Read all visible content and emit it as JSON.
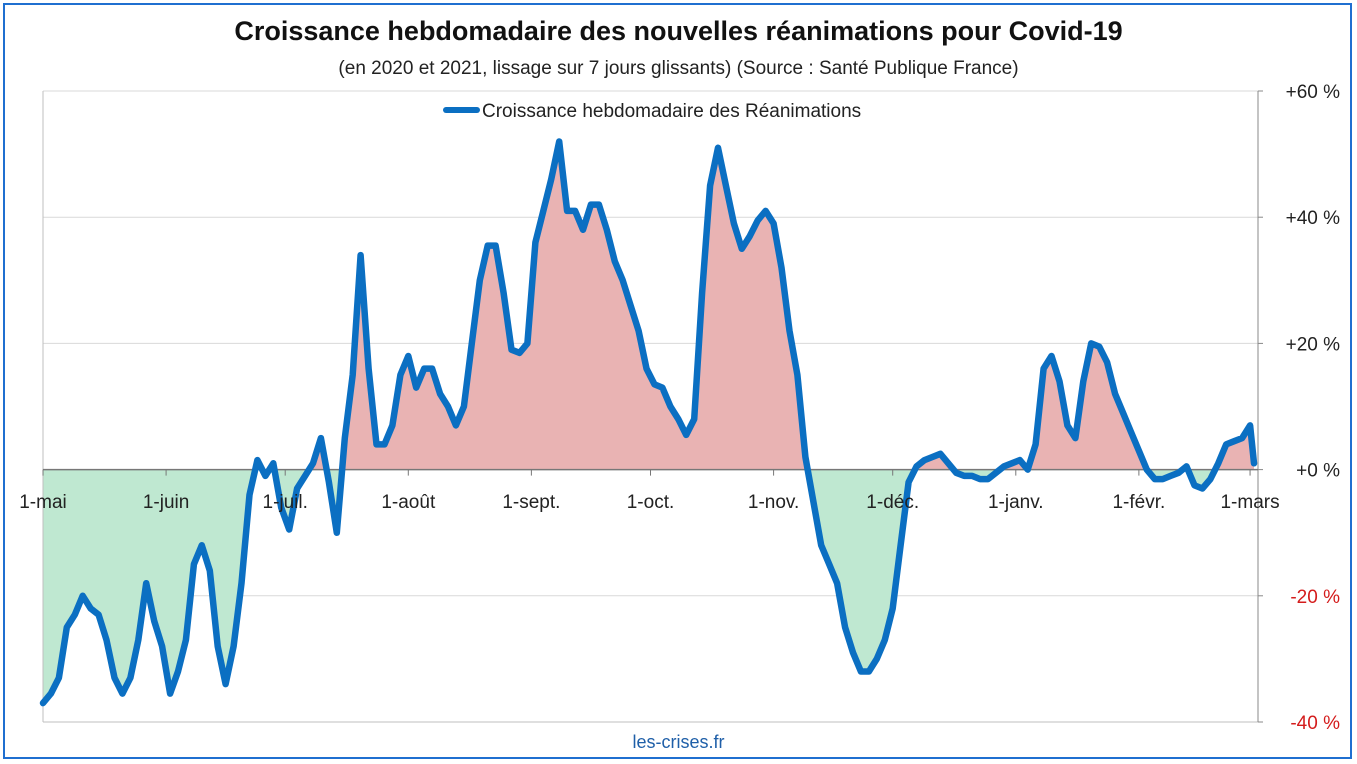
{
  "title": "Croissance hebdomadaire des nouvelles réanimations pour Covid-19",
  "subtitle": "(en 2020 et 2021, lissage sur 7 jours glissants) (Source : Santé Publique France)",
  "source_label": "les-crises.fr",
  "colors": {
    "line": "#0b6fc2",
    "positive_fill": "#e9b3b3",
    "negative_fill": "#bfe8d1",
    "negative_tick": "#d41c1c",
    "frame": "#1f6fd0",
    "grid": "#d9d9d9"
  },
  "chart_data": {
    "type": "area",
    "title": "Croissance hebdomadaire des nouvelles réanimations pour Covid-19",
    "subtitle": "(en 2020 et 2021, lissage sur 7 jours glissants) (Source : Santé Publique France)",
    "y_axis_side": "right",
    "ylim": [
      -40,
      60
    ],
    "yticks": [
      {
        "value": 60,
        "label": "+60 %"
      },
      {
        "value": 40,
        "label": "+40 %"
      },
      {
        "value": 20,
        "label": "+20 %"
      },
      {
        "value": 0,
        "label": "+0 %"
      },
      {
        "value": -20,
        "label": "-20 %"
      },
      {
        "value": -40,
        "label": "-40 %"
      }
    ],
    "grid": true,
    "xlim": [
      "2020-05-01",
      "2021-03-03"
    ],
    "xticks": [
      {
        "date": "2020-05-01",
        "label": "1-mai"
      },
      {
        "date": "2020-06-01",
        "label": "1-juin"
      },
      {
        "date": "2020-07-01",
        "label": "1-juil."
      },
      {
        "date": "2020-08-01",
        "label": "1-août"
      },
      {
        "date": "2020-09-01",
        "label": "1-sept."
      },
      {
        "date": "2020-10-01",
        "label": "1-oct."
      },
      {
        "date": "2020-11-01",
        "label": "1-nov."
      },
      {
        "date": "2020-12-01",
        "label": "1-déc."
      },
      {
        "date": "2021-01-01",
        "label": "1-janv."
      },
      {
        "date": "2021-02-01",
        "label": "1-févr."
      },
      {
        "date": "2021-03-01",
        "label": "1-mars"
      }
    ],
    "legend_position": "top-center",
    "series": [
      {
        "name": "Croissance hebdomadaire des Réanimations",
        "points": [
          [
            "2020-05-01",
            -37
          ],
          [
            "2020-05-03",
            -35.5
          ],
          [
            "2020-05-05",
            -33
          ],
          [
            "2020-05-07",
            -25
          ],
          [
            "2020-05-09",
            -23
          ],
          [
            "2020-05-11",
            -20
          ],
          [
            "2020-05-13",
            -22
          ],
          [
            "2020-05-15",
            -23
          ],
          [
            "2020-05-17",
            -27
          ],
          [
            "2020-05-19",
            -33
          ],
          [
            "2020-05-21",
            -35.5
          ],
          [
            "2020-05-23",
            -33
          ],
          [
            "2020-05-25",
            -27
          ],
          [
            "2020-05-27",
            -18
          ],
          [
            "2020-05-29",
            -24
          ],
          [
            "2020-05-31",
            -28
          ],
          [
            "2020-06-02",
            -35.5
          ],
          [
            "2020-06-04",
            -32
          ],
          [
            "2020-06-06",
            -27
          ],
          [
            "2020-06-08",
            -15
          ],
          [
            "2020-06-10",
            -12
          ],
          [
            "2020-06-12",
            -16
          ],
          [
            "2020-06-14",
            -28
          ],
          [
            "2020-06-16",
            -34
          ],
          [
            "2020-06-18",
            -28
          ],
          [
            "2020-06-20",
            -18
          ],
          [
            "2020-06-22",
            -4
          ],
          [
            "2020-06-24",
            1.5
          ],
          [
            "2020-06-26",
            -1
          ],
          [
            "2020-06-28",
            1
          ],
          [
            "2020-06-30",
            -6
          ],
          [
            "2020-07-02",
            -9.5
          ],
          [
            "2020-07-04",
            -3
          ],
          [
            "2020-07-06",
            -1
          ],
          [
            "2020-07-08",
            1
          ],
          [
            "2020-07-10",
            5
          ],
          [
            "2020-07-12",
            -2
          ],
          [
            "2020-07-14",
            -10
          ],
          [
            "2020-07-16",
            5
          ],
          [
            "2020-07-18",
            15
          ],
          [
            "2020-07-20",
            34
          ],
          [
            "2020-07-22",
            16
          ],
          [
            "2020-07-24",
            4
          ],
          [
            "2020-07-26",
            4
          ],
          [
            "2020-07-28",
            7
          ],
          [
            "2020-07-30",
            15
          ],
          [
            "2020-08-01",
            18
          ],
          [
            "2020-08-03",
            13
          ],
          [
            "2020-08-05",
            16
          ],
          [
            "2020-08-07",
            16
          ],
          [
            "2020-08-09",
            12
          ],
          [
            "2020-08-11",
            10
          ],
          [
            "2020-08-13",
            7
          ],
          [
            "2020-08-15",
            10
          ],
          [
            "2020-08-17",
            20
          ],
          [
            "2020-08-19",
            30
          ],
          [
            "2020-08-21",
            35.5
          ],
          [
            "2020-08-23",
            35.5
          ],
          [
            "2020-08-25",
            28
          ],
          [
            "2020-08-27",
            19
          ],
          [
            "2020-08-29",
            18.5
          ],
          [
            "2020-08-31",
            20
          ],
          [
            "2020-09-02",
            36
          ],
          [
            "2020-09-04",
            41
          ],
          [
            "2020-09-06",
            46
          ],
          [
            "2020-09-08",
            52
          ],
          [
            "2020-09-10",
            41
          ],
          [
            "2020-09-12",
            41
          ],
          [
            "2020-09-14",
            38
          ],
          [
            "2020-09-16",
            42
          ],
          [
            "2020-09-18",
            42
          ],
          [
            "2020-09-20",
            38
          ],
          [
            "2020-09-22",
            33
          ],
          [
            "2020-09-24",
            30
          ],
          [
            "2020-09-26",
            26
          ],
          [
            "2020-09-28",
            22
          ],
          [
            "2020-09-30",
            16
          ],
          [
            "2020-10-02",
            13.5
          ],
          [
            "2020-10-04",
            13
          ],
          [
            "2020-10-06",
            10
          ],
          [
            "2020-10-08",
            8
          ],
          [
            "2020-10-10",
            5.5
          ],
          [
            "2020-10-12",
            8
          ],
          [
            "2020-10-14",
            28
          ],
          [
            "2020-10-16",
            45
          ],
          [
            "2020-10-18",
            51
          ],
          [
            "2020-10-20",
            45
          ],
          [
            "2020-10-22",
            39
          ],
          [
            "2020-10-24",
            35
          ],
          [
            "2020-10-26",
            37
          ],
          [
            "2020-10-28",
            39.5
          ],
          [
            "2020-10-30",
            41
          ],
          [
            "2020-11-01",
            39
          ],
          [
            "2020-11-03",
            32
          ],
          [
            "2020-11-05",
            22
          ],
          [
            "2020-11-07",
            15
          ],
          [
            "2020-11-09",
            2
          ],
          [
            "2020-11-11",
            -5
          ],
          [
            "2020-11-13",
            -12
          ],
          [
            "2020-11-15",
            -15
          ],
          [
            "2020-11-17",
            -18
          ],
          [
            "2020-11-19",
            -25
          ],
          [
            "2020-11-21",
            -29
          ],
          [
            "2020-11-23",
            -32
          ],
          [
            "2020-11-25",
            -32
          ],
          [
            "2020-11-27",
            -30
          ],
          [
            "2020-11-29",
            -27
          ],
          [
            "2020-12-01",
            -22
          ],
          [
            "2020-12-03",
            -12
          ],
          [
            "2020-12-05",
            -2
          ],
          [
            "2020-12-07",
            0.5
          ],
          [
            "2020-12-09",
            1.5
          ],
          [
            "2020-12-11",
            2
          ],
          [
            "2020-12-13",
            2.5
          ],
          [
            "2020-12-15",
            1
          ],
          [
            "2020-12-17",
            -0.5
          ],
          [
            "2020-12-19",
            -1
          ],
          [
            "2020-12-21",
            -1
          ],
          [
            "2020-12-23",
            -1.5
          ],
          [
            "2020-12-25",
            -1.5
          ],
          [
            "2020-12-27",
            -0.5
          ],
          [
            "2020-12-29",
            0.5
          ],
          [
            "2020-12-31",
            1
          ],
          [
            "2021-01-02",
            1.5
          ],
          [
            "2021-01-04",
            0
          ],
          [
            "2021-01-06",
            4
          ],
          [
            "2021-01-08",
            16
          ],
          [
            "2021-01-10",
            18
          ],
          [
            "2021-01-12",
            14
          ],
          [
            "2021-01-14",
            7
          ],
          [
            "2021-01-16",
            5
          ],
          [
            "2021-01-18",
            14
          ],
          [
            "2021-01-20",
            20
          ],
          [
            "2021-01-22",
            19.5
          ],
          [
            "2021-01-24",
            17
          ],
          [
            "2021-01-26",
            12
          ],
          [
            "2021-01-28",
            9
          ],
          [
            "2021-01-30",
            6
          ],
          [
            "2021-02-01",
            3
          ],
          [
            "2021-02-03",
            0
          ],
          [
            "2021-02-05",
            -1.5
          ],
          [
            "2021-02-07",
            -1.5
          ],
          [
            "2021-02-09",
            -1
          ],
          [
            "2021-02-11",
            -0.5
          ],
          [
            "2021-02-13",
            0.5
          ],
          [
            "2021-02-15",
            -2.5
          ],
          [
            "2021-02-17",
            -3
          ],
          [
            "2021-02-19",
            -1.5
          ],
          [
            "2021-02-21",
            1
          ],
          [
            "2021-02-23",
            4
          ],
          [
            "2021-02-25",
            4.5
          ],
          [
            "2021-02-27",
            5
          ],
          [
            "2021-03-01",
            7
          ],
          [
            "2021-03-02",
            1
          ]
        ]
      }
    ]
  }
}
